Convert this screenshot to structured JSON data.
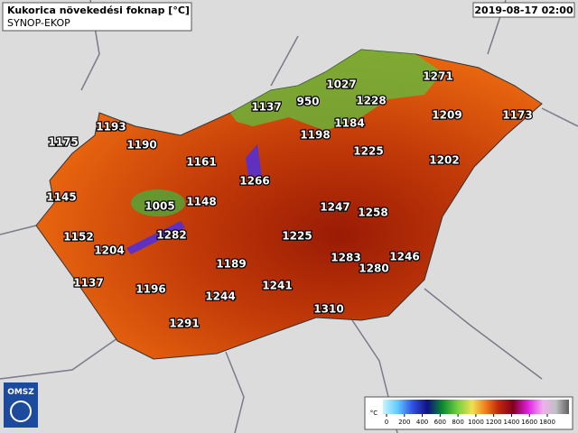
{
  "header": {
    "title": "Kukorica növekedési foknap [°C]",
    "subtitle": "SYNOP-EKOP",
    "timestamp": "2019-08-17 02:00"
  },
  "stations": [
    {
      "label": 1193
    },
    {
      "label": 1175
    },
    {
      "label": 1190
    },
    {
      "label": 1161
    },
    {
      "label": 1145
    },
    {
      "label": 1005
    },
    {
      "label": 1148
    },
    {
      "label": 1266
    },
    {
      "label": 1152
    },
    {
      "label": 1204
    },
    {
      "label": 1282
    },
    {
      "label": 1137
    },
    {
      "label": 1196
    },
    {
      "label": 1189
    },
    {
      "label": 1244
    },
    {
      "label": 1291
    },
    {
      "label": 1241
    },
    {
      "label": 1225
    },
    {
      "label": 1310
    },
    {
      "label": 1283
    },
    {
      "label": 1280
    },
    {
      "label": 1246
    },
    {
      "label": 1247
    },
    {
      "label": 1258
    },
    {
      "label": 1225
    },
    {
      "label": 1202
    },
    {
      "label": 1209
    },
    {
      "label": 1173
    },
    {
      "label": 1271
    },
    {
      "label": 1228
    },
    {
      "label": 1027
    },
    {
      "label": 950
    },
    {
      "label": 1137
    },
    {
      "label": 1184
    },
    {
      "label": 1198
    }
  ],
  "legend": {
    "unit": "°C",
    "ticks": [
      0,
      200,
      400,
      600,
      800,
      1000,
      1200,
      1400,
      1600,
      1800
    ]
  },
  "logo": {
    "text": "OMSZ"
  }
}
